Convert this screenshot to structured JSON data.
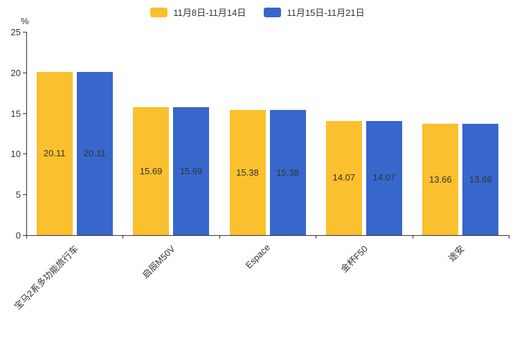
{
  "chart_data": {
    "type": "bar",
    "title": "",
    "categories": [
      "宝马2系多功能旅行车",
      "启辰M50V",
      "Espace",
      "金杯F50",
      "途安"
    ],
    "series": [
      {
        "name": "11月8日-11月14日",
        "color": "#FBC02D",
        "values": [
          20.11,
          15.69,
          15.38,
          14.07,
          13.66
        ]
      },
      {
        "name": "11月15日-11月21日",
        "color": "#3867CC",
        "values": [
          20.11,
          15.69,
          15.38,
          14.07,
          13.66
        ]
      }
    ],
    "xlabel": "",
    "ylabel": "%",
    "ylim": [
      0,
      25
    ],
    "yticks": [
      0,
      5,
      10,
      15,
      20,
      25
    ],
    "grid": false,
    "legend_position": "top",
    "value_labels": true,
    "value_label_color": "#333333",
    "axis_color": "#333333"
  }
}
